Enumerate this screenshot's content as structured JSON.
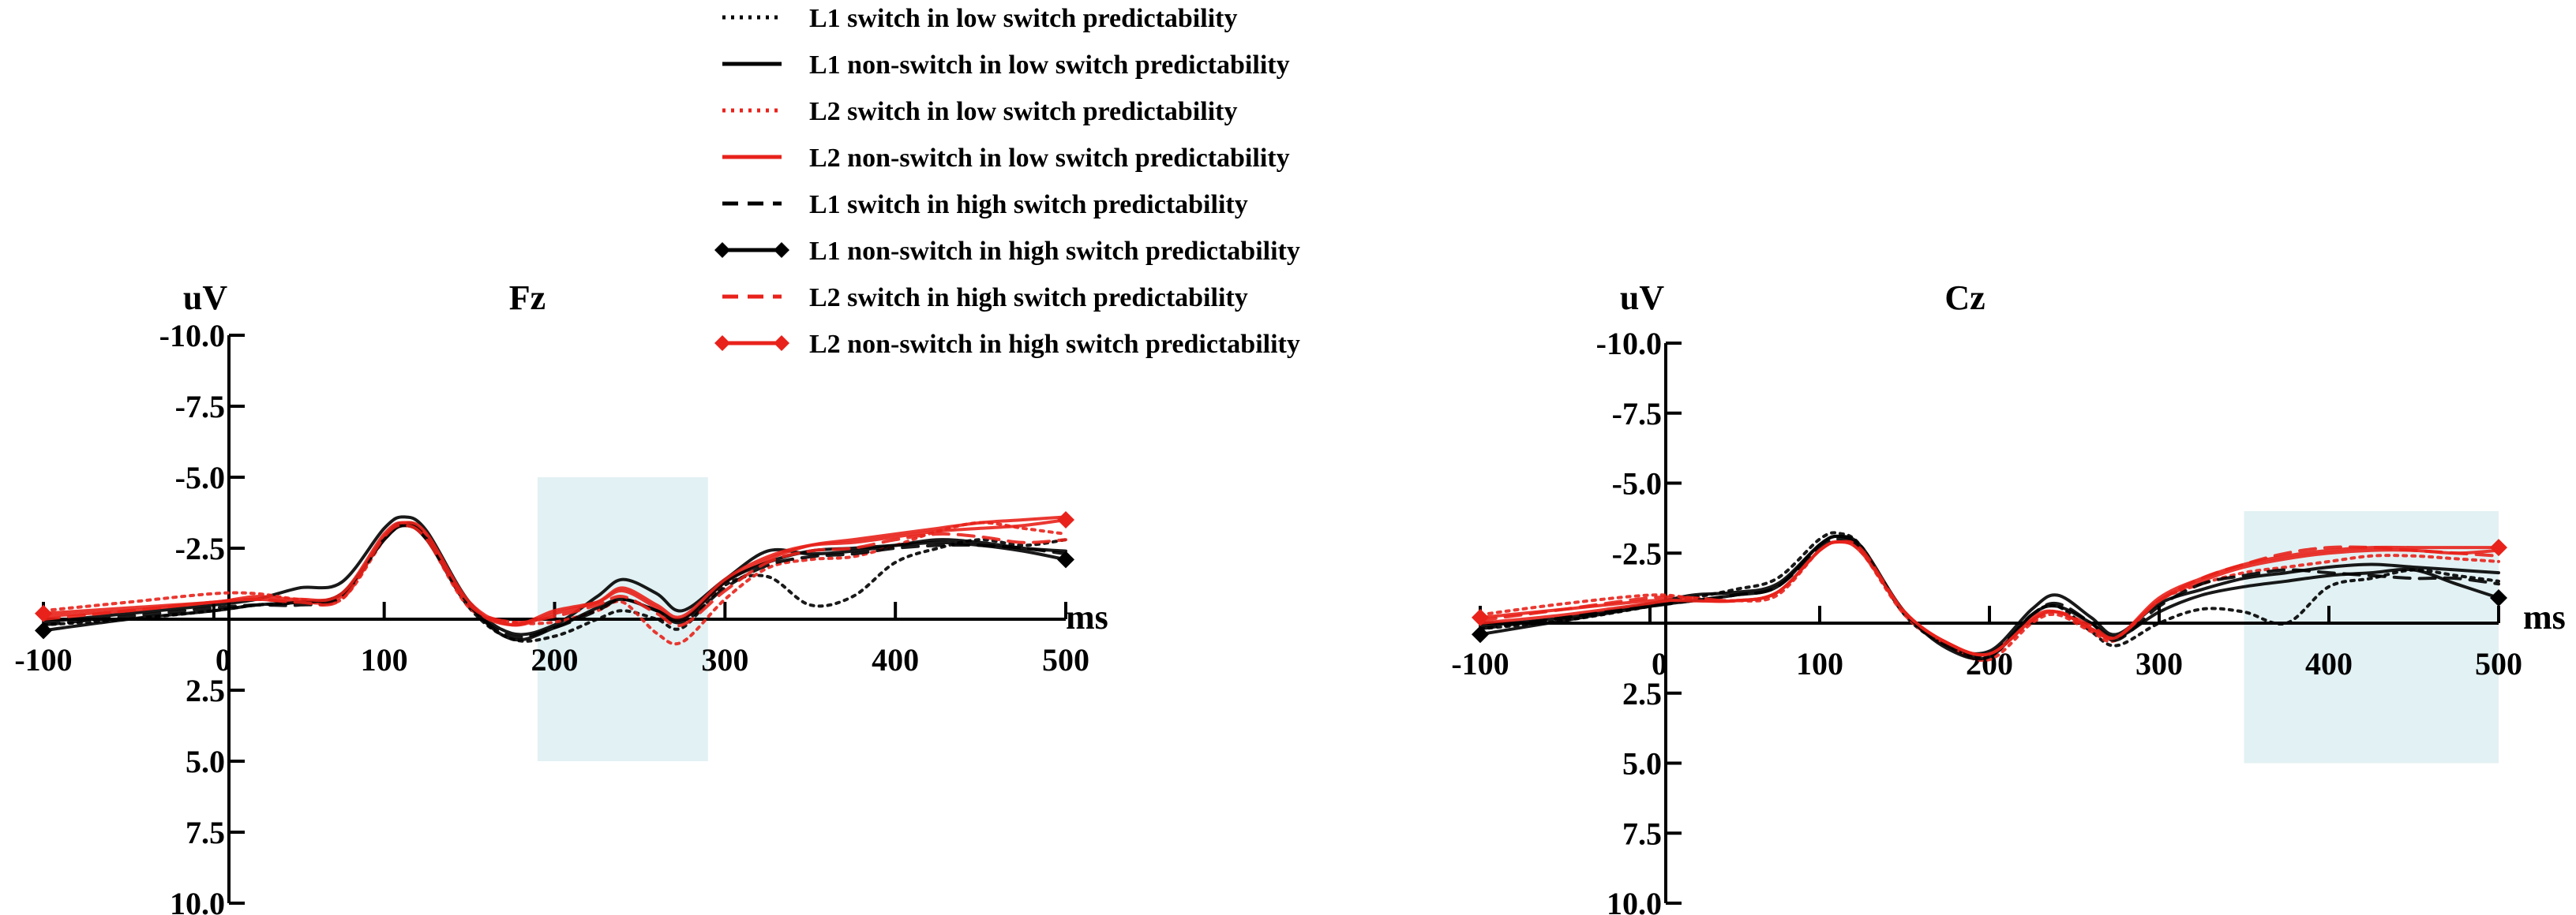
{
  "colors": {
    "black": "#000000",
    "red": "#e8221b",
    "shade": "#cfe8eb"
  },
  "legend": [
    {
      "label": "L1 switch in low switch predictability",
      "color": "#000000",
      "dash": "dot",
      "marker": "none"
    },
    {
      "label": "L1 non-switch in low switch predictability",
      "color": "#000000",
      "dash": "solid",
      "marker": "none"
    },
    {
      "label": "L2 switch in low switch predictability",
      "color": "#e8221b",
      "dash": "dot",
      "marker": "none"
    },
    {
      "label": "L2 non-switch in low switch predictability",
      "color": "#e8221b",
      "dash": "solid",
      "marker": "none"
    },
    {
      "label": "L1 switch in high switch predictability",
      "color": "#000000",
      "dash": "dash",
      "marker": "none"
    },
    {
      "label": "L1 non-switch in high switch predictability",
      "color": "#000000",
      "dash": "solid",
      "marker": "diamond"
    },
    {
      "label": "L2 switch in high switch predictability",
      "color": "#e8221b",
      "dash": "dash",
      "marker": "none"
    },
    {
      "label": "L2 non-switch in high switch predictability",
      "color": "#e8221b",
      "dash": "solid",
      "marker": "diamond"
    }
  ],
  "chart_data": [
    {
      "type": "line",
      "title": "Fz",
      "ylabel": "uV",
      "xlabel": "ms",
      "y_inverted": true,
      "xlim": [
        -100,
        500
      ],
      "ylim": [
        -10,
        10
      ],
      "x_ticks": [
        "-100",
        "0",
        "100",
        "200",
        "300",
        "400",
        "500"
      ],
      "y_ticks": [
        "-10.0",
        "-7.5",
        "-5.0",
        "-2.5",
        "0",
        "2.5",
        "5.0",
        "7.5",
        "10.0"
      ],
      "shaded_window_ms": [
        190,
        290
      ],
      "shaded_window_uV": [
        -5.0,
        5.0
      ],
      "x": [
        -100,
        -50,
        0,
        25,
        50,
        75,
        100,
        112,
        125,
        150,
        175,
        200,
        225,
        240,
        260,
        275,
        300,
        325,
        350,
        375,
        400,
        425,
        450,
        475,
        500
      ],
      "series": [
        {
          "name": "L1 switch in low switch predictability",
          "values": [
            0.2,
            0,
            -0.3,
            -0.5,
            -0.6,
            -0.9,
            -2.8,
            -3.3,
            -2.8,
            -0.4,
            0.7,
            0.6,
            0,
            -0.3,
            0,
            0.3,
            -1.2,
            -1.5,
            -0.5,
            -0.8,
            -2.0,
            -2.5,
            -2.8,
            -2.6,
            -2.8
          ]
        },
        {
          "name": "L1 non-switch in low switch predictability",
          "values": [
            0.1,
            -0.2,
            -0.5,
            -0.7,
            -1.1,
            -1.3,
            -3.2,
            -3.6,
            -3.1,
            -0.6,
            0.5,
            0.2,
            -0.8,
            -1.4,
            -0.9,
            -0.3,
            -1.4,
            -2.4,
            -2.3,
            -2.4,
            -2.6,
            -2.8,
            -2.7,
            -2.5,
            -2.4
          ]
        },
        {
          "name": "L2 switch in low switch predictability",
          "values": [
            -0.3,
            -0.6,
            -0.9,
            -0.9,
            -0.7,
            -0.7,
            -2.8,
            -3.3,
            -2.8,
            -0.4,
            0.1,
            0.1,
            -0.3,
            -0.6,
            0.5,
            0.8,
            -0.7,
            -1.8,
            -2.1,
            -2.2,
            -2.6,
            -3.1,
            -3.4,
            -3.2,
            -3.0
          ]
        },
        {
          "name": "L2 non-switch in low switch predictability",
          "values": [
            -0.1,
            -0.3,
            -0.6,
            -0.7,
            -0.6,
            -0.8,
            -2.9,
            -3.4,
            -2.9,
            -0.5,
            0.2,
            -0.3,
            -0.6,
            -1.0,
            -0.4,
            0,
            -1.3,
            -2.1,
            -2.6,
            -2.8,
            -3.0,
            -3.2,
            -3.4,
            -3.5,
            -3.6
          ]
        },
        {
          "name": "L1 switch in high switch predictability",
          "values": [
            0.2,
            -0.1,
            -0.4,
            -0.5,
            -0.5,
            -0.8,
            -2.9,
            -3.4,
            -2.9,
            -0.5,
            0.6,
            0.3,
            -0.3,
            -0.7,
            -0.3,
            0.1,
            -1.1,
            -1.9,
            -2.2,
            -2.3,
            -2.5,
            -2.6,
            -2.6,
            -2.5,
            -2.3
          ]
        },
        {
          "name": "L1 non-switch in high switch predictability",
          "values": [
            0.4,
            0,
            -0.3,
            -0.5,
            -0.6,
            -0.9,
            -2.8,
            -3.3,
            -2.8,
            -0.5,
            0.7,
            0.3,
            -0.4,
            -0.7,
            -0.3,
            0,
            -1.3,
            -2.0,
            -2.4,
            -2.5,
            -2.6,
            -2.7,
            -2.6,
            -2.4,
            -2.1
          ]
        },
        {
          "name": "L2 switch in high switch predictability",
          "values": [
            0,
            -0.3,
            -0.6,
            -0.7,
            -0.6,
            -0.7,
            -2.9,
            -3.3,
            -2.8,
            -0.5,
            0.1,
            -0.1,
            -0.5,
            -0.8,
            -0.2,
            0.2,
            -1.0,
            -2.0,
            -2.4,
            -2.5,
            -2.8,
            -3.0,
            -2.9,
            -2.7,
            -2.8
          ]
        },
        {
          "name": "L2 non-switch in high switch predictability",
          "values": [
            -0.2,
            -0.4,
            -0.6,
            -0.8,
            -0.7,
            -0.9,
            -3.0,
            -3.4,
            -3.0,
            -0.6,
            0.2,
            -0.2,
            -0.6,
            -1.1,
            -0.5,
            -0.1,
            -1.4,
            -2.2,
            -2.6,
            -2.7,
            -2.9,
            -3.1,
            -3.2,
            -3.3,
            -3.5
          ]
        }
      ]
    },
    {
      "type": "line",
      "title": "Cz",
      "ylabel": "uV",
      "xlabel": "ms",
      "y_inverted": true,
      "xlim": [
        -100,
        500
      ],
      "ylim": [
        -10,
        10
      ],
      "x_ticks": [
        "-100",
        "0",
        "100",
        "200",
        "300",
        "400",
        "500"
      ],
      "y_ticks": [
        "-10.0",
        "-7.5",
        "-5.0",
        "-2.5",
        "0",
        "2.5",
        "5.0",
        "7.5",
        "10.0"
      ],
      "shaded_window_ms": [
        350,
        500
      ],
      "shaded_window_uV": [
        -4.0,
        5.0
      ],
      "x": [
        -100,
        -50,
        0,
        25,
        50,
        75,
        100,
        112,
        125,
        150,
        175,
        200,
        225,
        240,
        260,
        275,
        300,
        325,
        350,
        375,
        400,
        425,
        450,
        475,
        500
      ],
      "series": [
        {
          "name": "L1 switch in low switch predictability",
          "values": [
            0.2,
            -0.1,
            -0.6,
            -0.9,
            -1.2,
            -1.6,
            -3.0,
            -3.2,
            -2.7,
            -0.3,
            0.8,
            1.2,
            -0.3,
            -0.6,
            0.3,
            0.8,
            0,
            -0.5,
            -0.4,
            0,
            -1.3,
            -1.6,
            -1.9,
            -1.7,
            -1.5
          ]
        },
        {
          "name": "L1 non-switch in low switch predictability",
          "values": [
            0.1,
            -0.2,
            -0.7,
            -1.0,
            -1.1,
            -1.4,
            -2.8,
            -3.1,
            -2.7,
            -0.4,
            0.8,
            1.0,
            -0.5,
            -1.0,
            -0.2,
            0.4,
            -0.7,
            -1.2,
            -1.6,
            -1.8,
            -2.0,
            -2.1,
            -2.0,
            -1.9,
            -1.8
          ]
        },
        {
          "name": "L2 switch in low switch predictability",
          "values": [
            -0.3,
            -0.7,
            -1.0,
            -0.9,
            -0.8,
            -1.0,
            -2.6,
            -2.9,
            -2.5,
            -0.3,
            0.8,
            1.3,
            0,
            -0.3,
            0.3,
            0.6,
            -0.8,
            -1.4,
            -1.8,
            -2.0,
            -2.2,
            -2.4,
            -2.4,
            -2.3,
            -2.2
          ]
        },
        {
          "name": "L2 non-switch in low switch predictability",
          "values": [
            0,
            -0.3,
            -0.7,
            -0.8,
            -0.8,
            -1.1,
            -2.6,
            -2.9,
            -2.6,
            -0.4,
            0.7,
            1.1,
            -0.2,
            -0.4,
            0.2,
            0.5,
            -0.8,
            -1.5,
            -2.0,
            -2.3,
            -2.5,
            -2.6,
            -2.6,
            -2.5,
            -2.6
          ]
        },
        {
          "name": "L1 switch in high switch predictability",
          "values": [
            0.2,
            -0.2,
            -0.6,
            -0.8,
            -1.0,
            -1.3,
            -2.7,
            -3.0,
            -2.6,
            -0.4,
            0.8,
            1.1,
            -0.3,
            -0.7,
            0,
            0.6,
            -0.6,
            -1.4,
            -1.7,
            -1.9,
            -1.8,
            -1.7,
            -1.6,
            -1.6,
            -1.4
          ]
        },
        {
          "name": "L1 non-switch in high switch predictability",
          "values": [
            0.4,
            -0.1,
            -0.6,
            -0.8,
            -1.0,
            -1.3,
            -2.8,
            -3.1,
            -2.6,
            -0.4,
            0.9,
            1.2,
            -0.3,
            -0.6,
            0,
            0.5,
            -0.4,
            -1.0,
            -1.3,
            -1.5,
            -1.7,
            -1.8,
            -1.9,
            -1.4,
            -0.9
          ]
        },
        {
          "name": "L2 switch in high switch predictability",
          "values": [
            -0.1,
            -0.5,
            -0.9,
            -0.9,
            -0.8,
            -1.1,
            -2.6,
            -2.9,
            -2.6,
            -0.4,
            0.7,
            1.1,
            -0.1,
            -0.4,
            0.1,
            0.5,
            -0.8,
            -1.6,
            -2.1,
            -2.5,
            -2.7,
            -2.7,
            -2.6,
            -2.5,
            -2.4
          ]
        },
        {
          "name": "L2 non-switch in high switch predictability",
          "values": [
            -0.2,
            -0.5,
            -0.8,
            -0.8,
            -0.8,
            -1.1,
            -2.6,
            -2.9,
            -2.5,
            -0.4,
            0.7,
            1.1,
            -0.1,
            -0.4,
            0.2,
            0.5,
            -0.9,
            -1.6,
            -2.1,
            -2.4,
            -2.6,
            -2.7,
            -2.7,
            -2.7,
            -2.7
          ]
        }
      ]
    }
  ]
}
